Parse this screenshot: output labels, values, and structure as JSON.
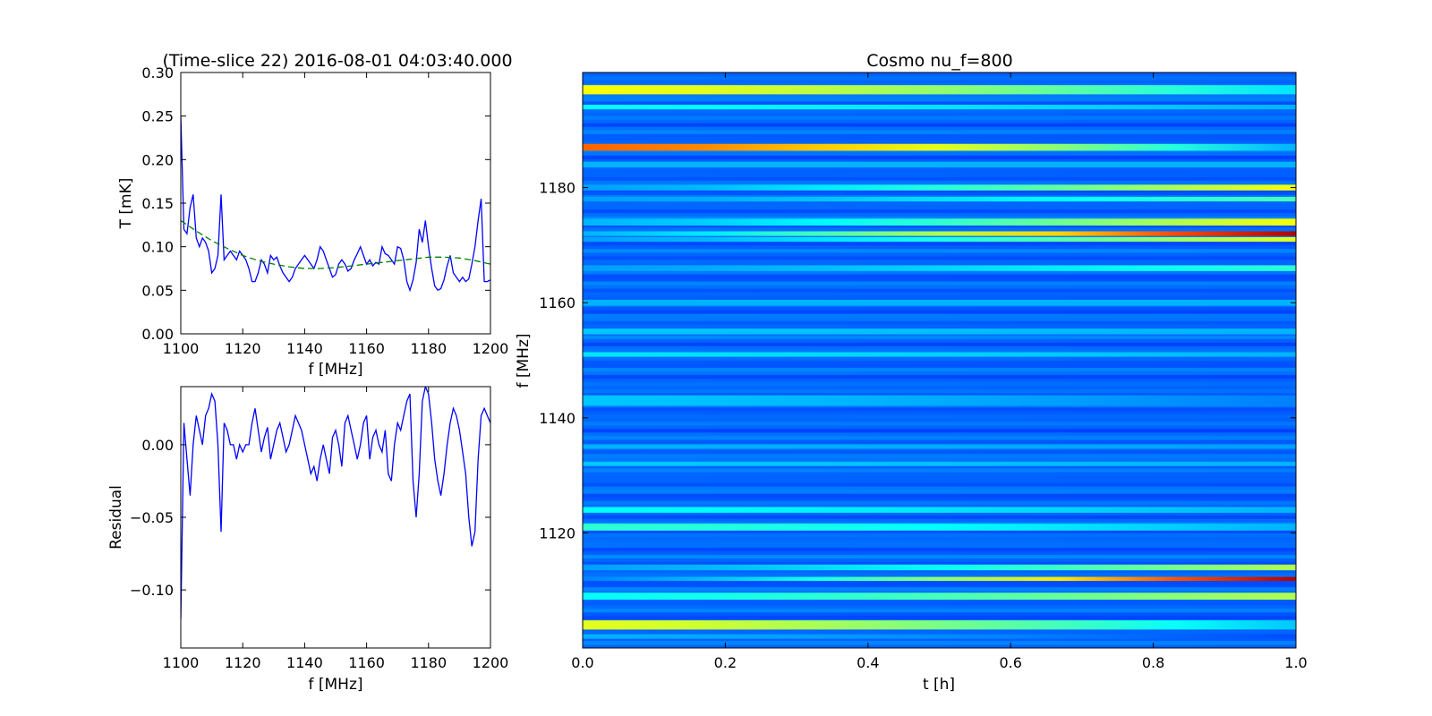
{
  "figure": {
    "background": "#ffffff"
  },
  "chart_data": [
    {
      "id": "spectrum",
      "type": "line",
      "title": "(Time-slice 22) 2016-08-01 04:03:40.000",
      "xlabel": "f [MHz]",
      "ylabel": "T [mK]",
      "xlim": [
        1100,
        1200
      ],
      "ylim": [
        0.0,
        0.3
      ],
      "xticks": [
        1100,
        1120,
        1140,
        1160,
        1180,
        1200
      ],
      "xtick_labels": [
        "1100",
        "1120",
        "1140",
        "1160",
        "1180",
        "1200"
      ],
      "yticks": [
        0.0,
        0.05,
        0.1,
        0.15,
        0.2,
        0.25,
        0.3
      ],
      "ytick_labels": [
        "0.00",
        "0.05",
        "0.10",
        "0.15",
        "0.20",
        "0.25",
        "0.30"
      ],
      "grid": false,
      "series": [
        {
          "style": "solid",
          "color": "#0000ff",
          "x": [
            1100,
            1101,
            1102,
            1103,
            1104,
            1105,
            1106,
            1107,
            1108,
            1109,
            1110,
            1111,
            1112,
            1113,
            1114,
            1115,
            1116,
            1117,
            1118,
            1119,
            1120,
            1121,
            1122,
            1123,
            1124,
            1125,
            1126,
            1127,
            1128,
            1129,
            1130,
            1131,
            1132,
            1133,
            1134,
            1135,
            1136,
            1137,
            1138,
            1139,
            1140,
            1141,
            1142,
            1143,
            1144,
            1145,
            1146,
            1147,
            1148,
            1149,
            1150,
            1151,
            1152,
            1153,
            1154,
            1155,
            1156,
            1157,
            1158,
            1159,
            1160,
            1161,
            1162,
            1163,
            1164,
            1165,
            1166,
            1167,
            1168,
            1169,
            1170,
            1171,
            1172,
            1173,
            1174,
            1175,
            1176,
            1177,
            1178,
            1179,
            1180,
            1181,
            1182,
            1183,
            1184,
            1185,
            1186,
            1187,
            1188,
            1189,
            1190,
            1191,
            1192,
            1193,
            1194,
            1195,
            1196,
            1197,
            1198,
            1199,
            1200
          ],
          "y": [
            0.25,
            0.12,
            0.115,
            0.145,
            0.16,
            0.11,
            0.1,
            0.11,
            0.105,
            0.095,
            0.07,
            0.075,
            0.09,
            0.16,
            0.085,
            0.09,
            0.095,
            0.09,
            0.085,
            0.095,
            0.09,
            0.085,
            0.075,
            0.06,
            0.06,
            0.07,
            0.085,
            0.08,
            0.07,
            0.09,
            0.085,
            0.088,
            0.078,
            0.07,
            0.065,
            0.06,
            0.065,
            0.075,
            0.08,
            0.085,
            0.09,
            0.085,
            0.08,
            0.075,
            0.085,
            0.1,
            0.095,
            0.085,
            0.075,
            0.065,
            0.068,
            0.08,
            0.085,
            0.08,
            0.072,
            0.075,
            0.085,
            0.092,
            0.1,
            0.09,
            0.08,
            0.085,
            0.078,
            0.082,
            0.08,
            0.1,
            0.092,
            0.09,
            0.085,
            0.08,
            0.1,
            0.098,
            0.085,
            0.06,
            0.05,
            0.062,
            0.082,
            0.12,
            0.105,
            0.13,
            0.1,
            0.075,
            0.055,
            0.05,
            0.052,
            0.062,
            0.078,
            0.09,
            0.07,
            0.065,
            0.06,
            0.065,
            0.06,
            0.063,
            0.08,
            0.1,
            0.13,
            0.155,
            0.06,
            0.06,
            0.062
          ]
        },
        {
          "style": "dashed",
          "color": "#008000",
          "x": [
            1100,
            1105,
            1110,
            1115,
            1120,
            1125,
            1130,
            1135,
            1140,
            1145,
            1150,
            1155,
            1160,
            1165,
            1170,
            1175,
            1180,
            1185,
            1190,
            1195,
            1200
          ],
          "y": [
            0.13,
            0.118,
            0.107,
            0.098,
            0.09,
            0.084,
            0.08,
            0.077,
            0.075,
            0.075,
            0.076,
            0.078,
            0.08,
            0.082,
            0.084,
            0.086,
            0.088,
            0.088,
            0.087,
            0.084,
            0.08
          ]
        }
      ]
    },
    {
      "id": "residual",
      "type": "line",
      "xlabel": "f [MHz]",
      "ylabel": "Residual",
      "xlim": [
        1100,
        1200
      ],
      "ylim": [
        -0.14,
        0.04
      ],
      "xticks": [
        1100,
        1120,
        1140,
        1160,
        1180,
        1200
      ],
      "xtick_labels": [
        "1100",
        "1120",
        "1140",
        "1160",
        "1180",
        "1200"
      ],
      "yticks": [
        -0.1,
        -0.05,
        0.0
      ],
      "ytick_labels": [
        "−0.10",
        "−0.05",
        "0.00"
      ],
      "grid": false,
      "series": [
        {
          "style": "solid",
          "color": "#0000ff",
          "x": [
            1100,
            1101,
            1102,
            1103,
            1104,
            1105,
            1106,
            1107,
            1108,
            1109,
            1110,
            1111,
            1112,
            1113,
            1114,
            1115,
            1116,
            1117,
            1118,
            1119,
            1120,
            1121,
            1122,
            1123,
            1124,
            1125,
            1126,
            1127,
            1128,
            1129,
            1130,
            1131,
            1132,
            1133,
            1134,
            1135,
            1136,
            1137,
            1138,
            1139,
            1140,
            1141,
            1142,
            1143,
            1144,
            1145,
            1146,
            1147,
            1148,
            1149,
            1150,
            1151,
            1152,
            1153,
            1154,
            1155,
            1156,
            1157,
            1158,
            1159,
            1160,
            1161,
            1162,
            1163,
            1164,
            1165,
            1166,
            1167,
            1168,
            1169,
            1170,
            1171,
            1172,
            1173,
            1174,
            1175,
            1176,
            1177,
            1178,
            1179,
            1180,
            1181,
            1182,
            1183,
            1184,
            1185,
            1186,
            1187,
            1188,
            1189,
            1190,
            1191,
            1192,
            1193,
            1194,
            1195,
            1196,
            1197,
            1198,
            1199,
            1200
          ],
          "y": [
            -0.12,
            0.015,
            -0.01,
            -0.035,
            0.0,
            0.02,
            0.01,
            0.0,
            0.02,
            0.025,
            0.035,
            0.03,
            0.0,
            -0.06,
            0.015,
            0.01,
            0.0,
            0.0,
            -0.01,
            0.0,
            -0.005,
            0.0,
            0.0,
            0.015,
            0.025,
            0.01,
            -0.005,
            0.005,
            0.012,
            -0.01,
            0.0,
            0.01,
            0.015,
            0.005,
            -0.005,
            0.0,
            0.01,
            0.02,
            0.015,
            0.01,
            0.0,
            -0.01,
            -0.02,
            -0.015,
            -0.025,
            -0.01,
            0.0,
            -0.01,
            -0.02,
            0.005,
            0.01,
            0.0,
            -0.015,
            0.015,
            0.02,
            0.01,
            0.0,
            -0.01,
            0.0,
            0.015,
            0.02,
            -0.01,
            0.005,
            0.01,
            0.0,
            -0.005,
            0.01,
            -0.02,
            -0.025,
            0.0,
            0.015,
            0.01,
            0.02,
            0.03,
            0.035,
            -0.025,
            -0.05,
            -0.02,
            0.03,
            0.04,
            0.035,
            0.015,
            -0.01,
            -0.025,
            -0.035,
            -0.02,
            0.0,
            0.015,
            0.025,
            0.02,
            0.01,
            -0.005,
            -0.02,
            -0.05,
            -0.07,
            -0.06,
            -0.01,
            0.02,
            0.025,
            0.02,
            0.015
          ]
        }
      ]
    },
    {
      "id": "waterfall",
      "type": "heatmap",
      "title": "Cosmo nu_f=800",
      "xlabel": "t [h]",
      "ylabel": "f [MHz]",
      "xlim": [
        0.0,
        1.0
      ],
      "ylim": [
        1100,
        1200
      ],
      "xticks": [
        0.0,
        0.2,
        0.4,
        0.6,
        0.8,
        1.0
      ],
      "xtick_labels": [
        "0.0",
        "0.2",
        "0.4",
        "0.6",
        "0.8",
        "1.0"
      ],
      "yticks": [
        1120,
        1140,
        1160,
        1180
      ],
      "ytick_labels": [
        "1120",
        "1140",
        "1160",
        "1180"
      ],
      "colormap": "jet",
      "bands_description_note": "",
      "bands": [
        {
          "f": 1197,
          "width": 1.6,
          "v_start": 0.62,
          "v_end": 0.35
        },
        {
          "f": 1194,
          "width": 0.8,
          "v_start": 0.38,
          "v_end": 0.3
        },
        {
          "f": 1187,
          "width": 1.2,
          "v_start": 0.78,
          "v_end": 0.3
        },
        {
          "f": 1184,
          "width": 1.0,
          "v_start": 0.3,
          "v_end": 0.3
        },
        {
          "f": 1180,
          "width": 1.0,
          "v_start": 0.28,
          "v_end": 0.62
        },
        {
          "f": 1178,
          "width": 0.8,
          "v_start": 0.28,
          "v_end": 0.45
        },
        {
          "f": 1174,
          "width": 1.2,
          "v_start": 0.3,
          "v_end": 0.62
        },
        {
          "f": 1172,
          "width": 0.8,
          "v_start": 0.3,
          "v_end": 0.95
        },
        {
          "f": 1171,
          "width": 0.8,
          "v_start": 0.28,
          "v_end": 0.6
        },
        {
          "f": 1166,
          "width": 1.0,
          "v_start": 0.28,
          "v_end": 0.42
        },
        {
          "f": 1160,
          "width": 1.0,
          "v_start": 0.3,
          "v_end": 0.3
        },
        {
          "f": 1155,
          "width": 1.0,
          "v_start": 0.32,
          "v_end": 0.3
        },
        {
          "f": 1151,
          "width": 0.8,
          "v_start": 0.35,
          "v_end": 0.3
        },
        {
          "f": 1143,
          "width": 1.8,
          "v_start": 0.32,
          "v_end": 0.25
        },
        {
          "f": 1135,
          "width": 0.8,
          "v_start": 0.3,
          "v_end": 0.28
        },
        {
          "f": 1132,
          "width": 0.8,
          "v_start": 0.32,
          "v_end": 0.3
        },
        {
          "f": 1124,
          "width": 1.0,
          "v_start": 0.38,
          "v_end": 0.3
        },
        {
          "f": 1121,
          "width": 1.2,
          "v_start": 0.42,
          "v_end": 0.3
        },
        {
          "f": 1114,
          "width": 1.0,
          "v_start": 0.28,
          "v_end": 0.55
        },
        {
          "f": 1112,
          "width": 0.7,
          "v_start": 0.25,
          "v_end": 0.95
        },
        {
          "f": 1109,
          "width": 1.2,
          "v_start": 0.38,
          "v_end": 0.55
        },
        {
          "f": 1104,
          "width": 1.6,
          "v_start": 0.6,
          "v_end": 0.32
        },
        {
          "f": 1102,
          "width": 0.8,
          "v_start": 0.3,
          "v_end": 0.2
        }
      ]
    }
  ]
}
